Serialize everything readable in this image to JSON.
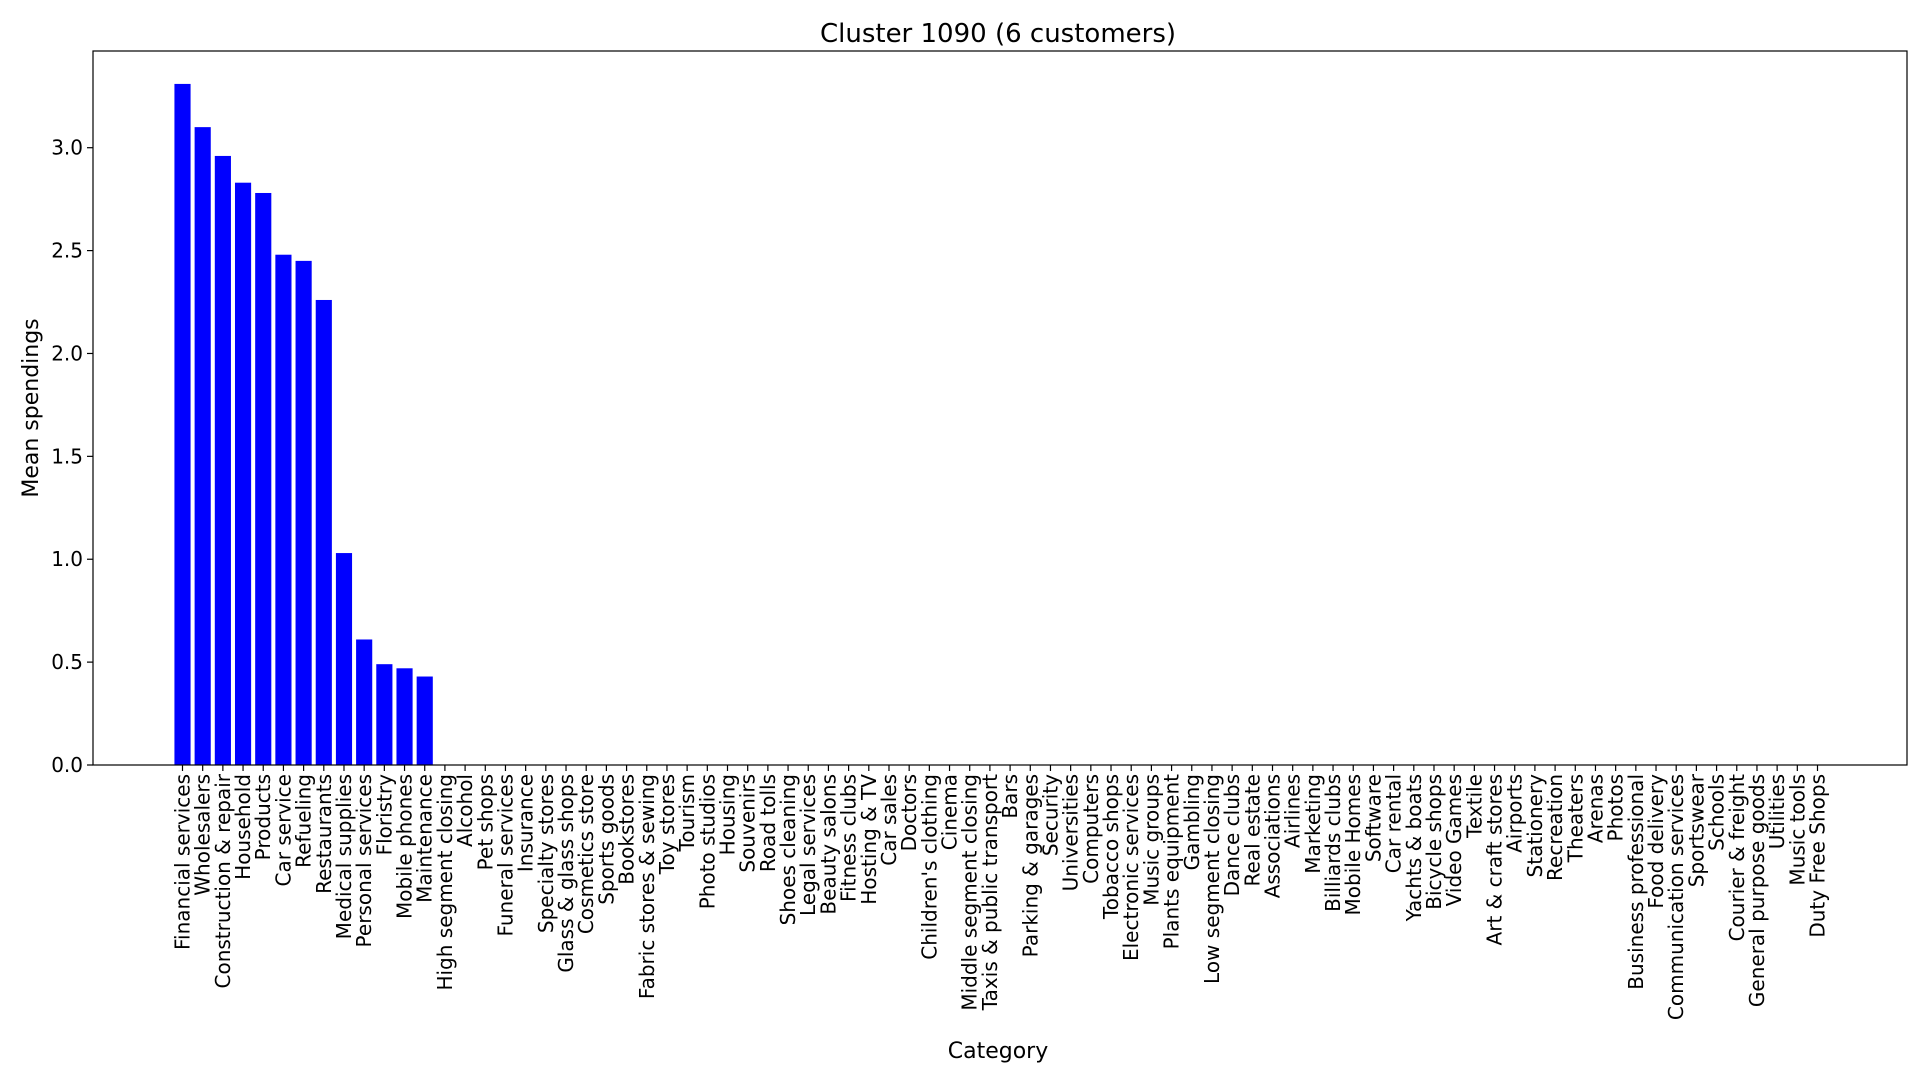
{
  "chart_data": {
    "type": "bar",
    "title": "Cluster 1090 (6 customers)",
    "xlabel": "Category",
    "ylabel": "Mean spendings",
    "ylim": [
      0,
      3.47
    ],
    "yticks": [
      0.0,
      0.5,
      1.0,
      1.5,
      2.0,
      2.5,
      3.0
    ],
    "ytick_labels": [
      "0.0",
      "0.5",
      "1.0",
      "1.5",
      "2.0",
      "2.5",
      "3.0"
    ],
    "bar_color": "#0000ff",
    "grid": false,
    "categories": [
      "Financial services",
      "Wholesalers",
      "Construction & repair",
      "Household",
      "Products",
      "Car service",
      "Refueling",
      "Restaurants",
      "Medical supplies",
      "Personal services",
      "Floristry",
      "Mobile phones",
      "Maintenance",
      "High segment closing",
      "Alcohol",
      "Pet shops",
      "Funeral services",
      "Insurance",
      "Specialty stores",
      "Glass & glass shops",
      "Cosmetics store",
      "Sports goods",
      "Bookstores",
      "Fabric stores & sewing",
      "Toy stores",
      "Tourism",
      "Photo studios",
      "Housing",
      "Souvenirs",
      "Road tolls",
      "Shoes cleaning",
      "Legal services",
      "Beauty salons",
      "Fitness clubs",
      "Hosting & TV",
      "Car sales",
      "Doctors",
      "Children's clothing",
      "Cinema",
      "Middle segment closing",
      "Taxis & public transport",
      "Bars",
      "Parking & garages",
      "Security",
      "Universities",
      "Computers",
      "Tobacco shops",
      "Electronic services",
      "Music groups",
      "Plants equipment",
      "Gambling",
      "Low segment closing",
      "Dance clubs",
      "Real estate",
      "Associations",
      "Airlines",
      "Marketing",
      "Billiards clubs",
      "Mobile Homes",
      "Software",
      "Car rental",
      "Yachts & boats",
      "Bicycle shops",
      "Video Games",
      "Textile",
      "Art & craft stores",
      "Airports",
      "Stationery",
      "Recreation",
      "Theaters",
      "Arenas",
      "Photos",
      "Business professional",
      "Food delivery",
      "Communication services",
      "Sportswear",
      "Schools",
      "Courier & freight",
      "General purpose goods",
      "Utilities",
      "Music tools",
      "Duty Free Shops"
    ],
    "values": [
      3.31,
      3.1,
      2.96,
      2.83,
      2.78,
      2.48,
      2.45,
      2.26,
      1.03,
      0.61,
      0.49,
      0.47,
      0.43,
      0,
      0,
      0,
      0,
      0,
      0,
      0,
      0,
      0,
      0,
      0,
      0,
      0,
      0,
      0,
      0,
      0,
      0,
      0,
      0,
      0,
      0,
      0,
      0,
      0,
      0,
      0,
      0,
      0,
      0,
      0,
      0,
      0,
      0,
      0,
      0,
      0,
      0,
      0,
      0,
      0,
      0,
      0,
      0,
      0,
      0,
      0,
      0,
      0,
      0,
      0,
      0,
      0,
      0,
      0,
      0,
      0,
      0,
      0,
      0,
      0,
      0,
      0,
      0,
      0,
      0,
      0,
      0,
      0
    ]
  }
}
